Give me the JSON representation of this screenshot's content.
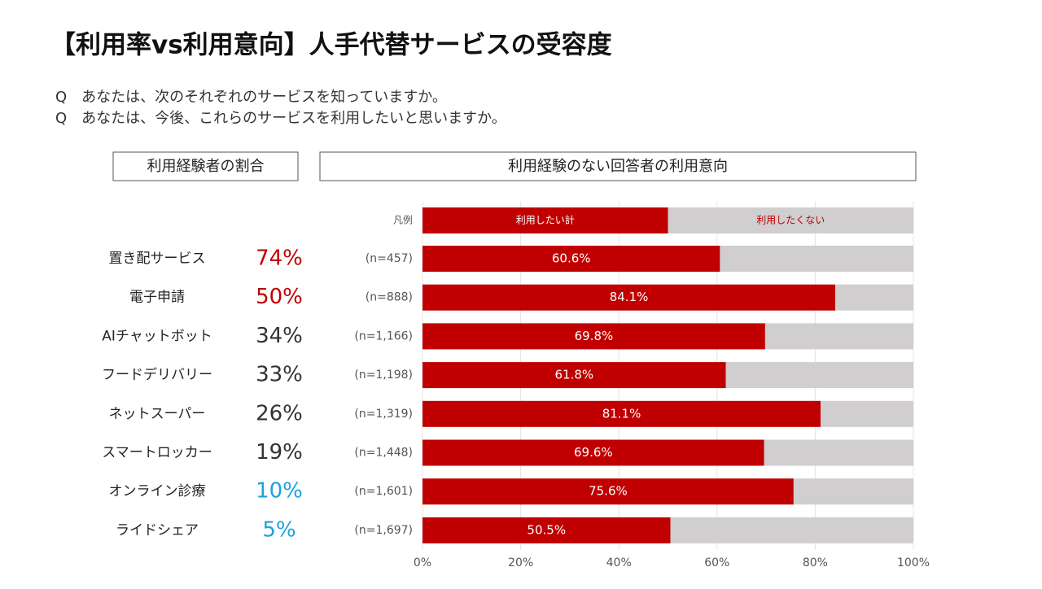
{
  "title": "【利用率vs利用意向】人手代替サービスの受容度",
  "questions": [
    "Q　あなたは、次のそれぞれのサービスを知っていますか。",
    "Q　あなたは、今後、これらのサービスを利用したいと思いますか。"
  ],
  "chart_data": [
    {
      "type": "table",
      "title": "利用経験者の割合",
      "categories": [
        "置き配サービス",
        "電子申請",
        "AIチャットボット",
        "フードデリバリー",
        "ネットスーパー",
        "スマートロッカー",
        "オンライン診療",
        "ライドシェア"
      ],
      "values": [
        74,
        50,
        34,
        33,
        26,
        19,
        10,
        5
      ],
      "value_labels": [
        "74%",
        "50%",
        "34%",
        "33%",
        "26%",
        "19%",
        "10%",
        "5%"
      ],
      "colors": [
        "#c00000",
        "#c00000",
        "#333333",
        "#333333",
        "#333333",
        "#333333",
        "#1aa3dc",
        "#1aa3dc"
      ]
    },
    {
      "type": "bar",
      "orientation": "horizontal",
      "stacked": true,
      "title": "利用経験のない回答者の利用意向",
      "legend_title": "凡例",
      "categories": [
        "(n=457)",
        "(n=888)",
        "(n=1,166)",
        "(n=1,198)",
        "(n=1,319)",
        "(n=1,448)",
        "(n=1,601)",
        "(n=1,697)"
      ],
      "series": [
        {
          "name": "利用したい計",
          "color": "#c00000",
          "values": [
            60.6,
            84.1,
            69.8,
            61.8,
            81.1,
            69.6,
            75.6,
            50.5
          ],
          "value_labels": [
            "60.6%",
            "84.1%",
            "69.8%",
            "61.8%",
            "81.1%",
            "69.6%",
            "75.6%",
            "50.5%"
          ]
        },
        {
          "name": "利用したくない",
          "color": "#d0cece",
          "values": [
            39.4,
            15.9,
            30.2,
            38.2,
            18.9,
            30.4,
            24.4,
            49.5
          ]
        }
      ],
      "xlim": [
        0,
        100
      ],
      "xticks": [
        {
          "value": 0,
          "label": "0%"
        },
        {
          "value": 20,
          "label": "20%"
        },
        {
          "value": 40,
          "label": "40%"
        },
        {
          "value": 60,
          "label": "60%"
        },
        {
          "value": 80,
          "label": "80%"
        },
        {
          "value": 100,
          "label": "100%"
        }
      ]
    }
  ]
}
